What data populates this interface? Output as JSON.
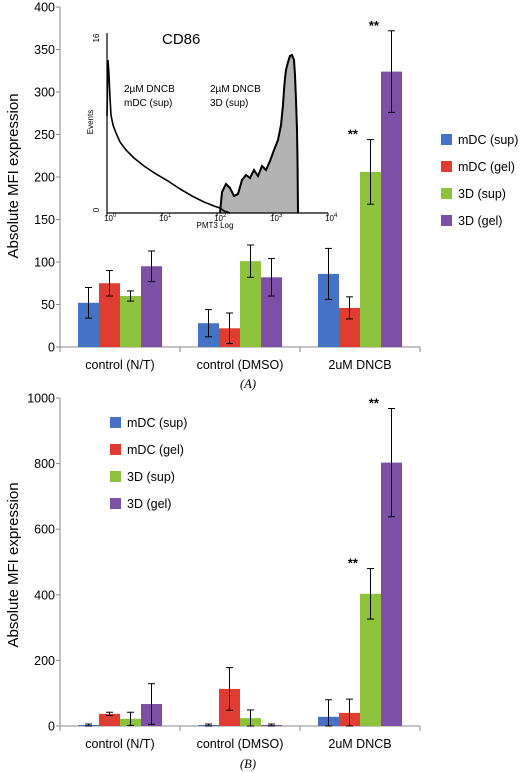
{
  "colors": {
    "series": [
      "#4472C4",
      "#E03C31",
      "#8FC23C",
      "#7E4FA6"
    ],
    "inset_fill": "#B3B3B3"
  },
  "chart_data": [
    {
      "type": "bar",
      "panel_label": "(A)",
      "ylabel": "Absolute MFI expression",
      "categories": [
        "control (N/T)",
        "control (DMSO)",
        "2uM DNCB"
      ],
      "ylim": [
        0,
        400
      ],
      "yticks": [
        0,
        50,
        100,
        150,
        200,
        250,
        300,
        350,
        400
      ],
      "legend_position": "right",
      "series": [
        {
          "name": "mDC (sup)",
          "values": [
            52,
            28,
            86
          ],
          "errors": [
            18,
            16,
            30
          ]
        },
        {
          "name": "mDC (gel)",
          "values": [
            75,
            22,
            46
          ],
          "errors": [
            15,
            18,
            13
          ]
        },
        {
          "name": "3D (sup)",
          "values": [
            60,
            101,
            206
          ],
          "errors": [
            6,
            19,
            38
          ]
        },
        {
          "name": "3D (gel)",
          "values": [
            95,
            82,
            324
          ],
          "errors": [
            18,
            22,
            48
          ]
        }
      ],
      "annotations": [
        {
          "category": 2,
          "series": 2,
          "text": "**"
        },
        {
          "category": 2,
          "series": 3,
          "text": "**"
        }
      ],
      "inset": {
        "title": "CD86",
        "ylabel": "Events",
        "xlabel": "PMT3 Log",
        "y_top_label": "16",
        "y_bottom_label": "0",
        "x_tick_labels": [
          {
            "base": "10",
            "exp": "0"
          },
          {
            "base": "10",
            "exp": "1"
          },
          {
            "base": "10",
            "exp": "2"
          },
          {
            "base": "10",
            "exp": "3"
          },
          {
            "base": "10",
            "exp": "4"
          }
        ],
        "label_mdc_line1": "2µM DNCB",
        "label_mdc_line2": "mDC (sup)",
        "label_3d_line1": "2µM DNCB",
        "label_3d_line2": "3D (sup)"
      }
    },
    {
      "type": "bar",
      "panel_label": "(B)",
      "ylabel": "Absolute MFI expression",
      "categories": [
        "control (N/T)",
        "control (DMSO)",
        "2uM DNCB"
      ],
      "ylim": [
        0,
        1000
      ],
      "yticks": [
        0,
        200,
        400,
        600,
        800,
        1000
      ],
      "legend_position": "top-left",
      "series": [
        {
          "name": "mDC (sup)",
          "values": [
            3,
            3,
            28
          ],
          "errors": [
            3,
            3,
            52
          ]
        },
        {
          "name": "mDC (gel)",
          "values": [
            37,
            113,
            40
          ],
          "errors": [
            5,
            65,
            42
          ]
        },
        {
          "name": "3D (sup)",
          "values": [
            22,
            24,
            403
          ],
          "errors": [
            20,
            25,
            77
          ]
        },
        {
          "name": "3D (gel)",
          "values": [
            67,
            3,
            803
          ],
          "errors": [
            62,
            3,
            165
          ]
        }
      ],
      "annotations": [
        {
          "category": 2,
          "series": 2,
          "text": "**"
        },
        {
          "category": 2,
          "series": 3,
          "text": "**"
        }
      ]
    }
  ]
}
